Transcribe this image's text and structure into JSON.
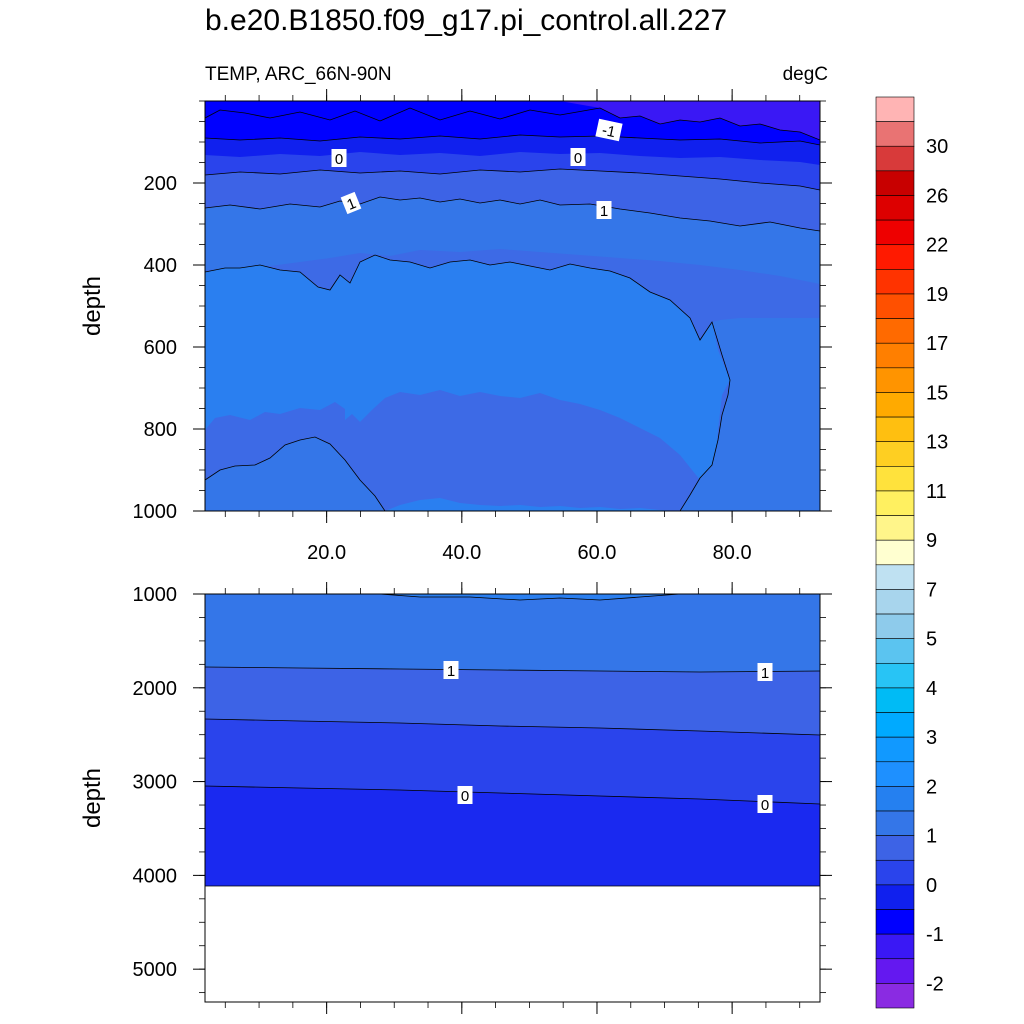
{
  "chart_data": {
    "type": "contour",
    "title": "b.e20.B1850.f09_g17.pi_control.all.227",
    "variable_label": "TEMP, ARC_66N-90N",
    "units": "degC",
    "panels": [
      {
        "name": "upper",
        "ylabel": "depth",
        "ylim": [
          1000,
          0
        ],
        "yticks": [
          200,
          400,
          600,
          800,
          1000
        ],
        "xlim": [
          2,
          93
        ],
        "xticks": [
          20,
          40,
          60,
          80
        ],
        "xtick_labels": [
          "20.0",
          "40.0",
          "60.0",
          "80.0"
        ],
        "contour_labels": [
          "-1",
          "0",
          "0",
          "1",
          "1"
        ]
      },
      {
        "name": "lower",
        "ylabel": "depth",
        "ylim": [
          5350,
          1000
        ],
        "yticks": [
          1000,
          2000,
          3000,
          4000,
          5000
        ],
        "xlim": [
          2,
          93
        ],
        "xticks": [
          20,
          40,
          60,
          80
        ],
        "contour_labels": [
          "1",
          "1",
          "0",
          "0"
        ],
        "bottom_depth": 4120
      }
    ],
    "colorbar": {
      "levels": [
        -2,
        -1.5,
        -1,
        -0.5,
        0,
        0.5,
        1,
        1.5,
        2,
        2.5,
        3,
        3.5,
        4,
        4.5,
        5,
        6,
        7,
        8,
        9,
        10,
        11,
        12,
        13,
        14,
        15,
        16,
        17,
        18,
        19,
        20,
        22,
        24,
        26,
        28,
        30,
        32
      ],
      "tick_labels": [
        "-2",
        "-1",
        "0",
        "1",
        "2",
        "3",
        "4",
        "5",
        "7",
        "9",
        "11",
        "13",
        "15",
        "17",
        "19",
        "22",
        "26",
        "30"
      ],
      "colors": [
        "#8a2be2",
        "#6418f0",
        "#3a18f5",
        "#0000ff",
        "#1020ee",
        "#2a44ec",
        "#3d63e6",
        "#3476e8",
        "#2580f0",
        "#1e90ff",
        "#1199ff",
        "#00aaff",
        "#00bbf5",
        "#28c4f5",
        "#5bc4f0",
        "#8ecbeb",
        "#a8d5ed",
        "#bfe1f2",
        "#ffffd0",
        "#fff58a",
        "#fff060",
        "#ffe23c",
        "#fecf22",
        "#ffbf10",
        "#ffaa00",
        "#ff9400",
        "#ff7f00",
        "#ff6a00",
        "#ff5000",
        "#ff3300",
        "#ff1a00",
        "#ee0000",
        "#dd0000",
        "#c80000",
        "#d83a3a",
        "#e97373",
        "#ffb4b4"
      ]
    }
  }
}
